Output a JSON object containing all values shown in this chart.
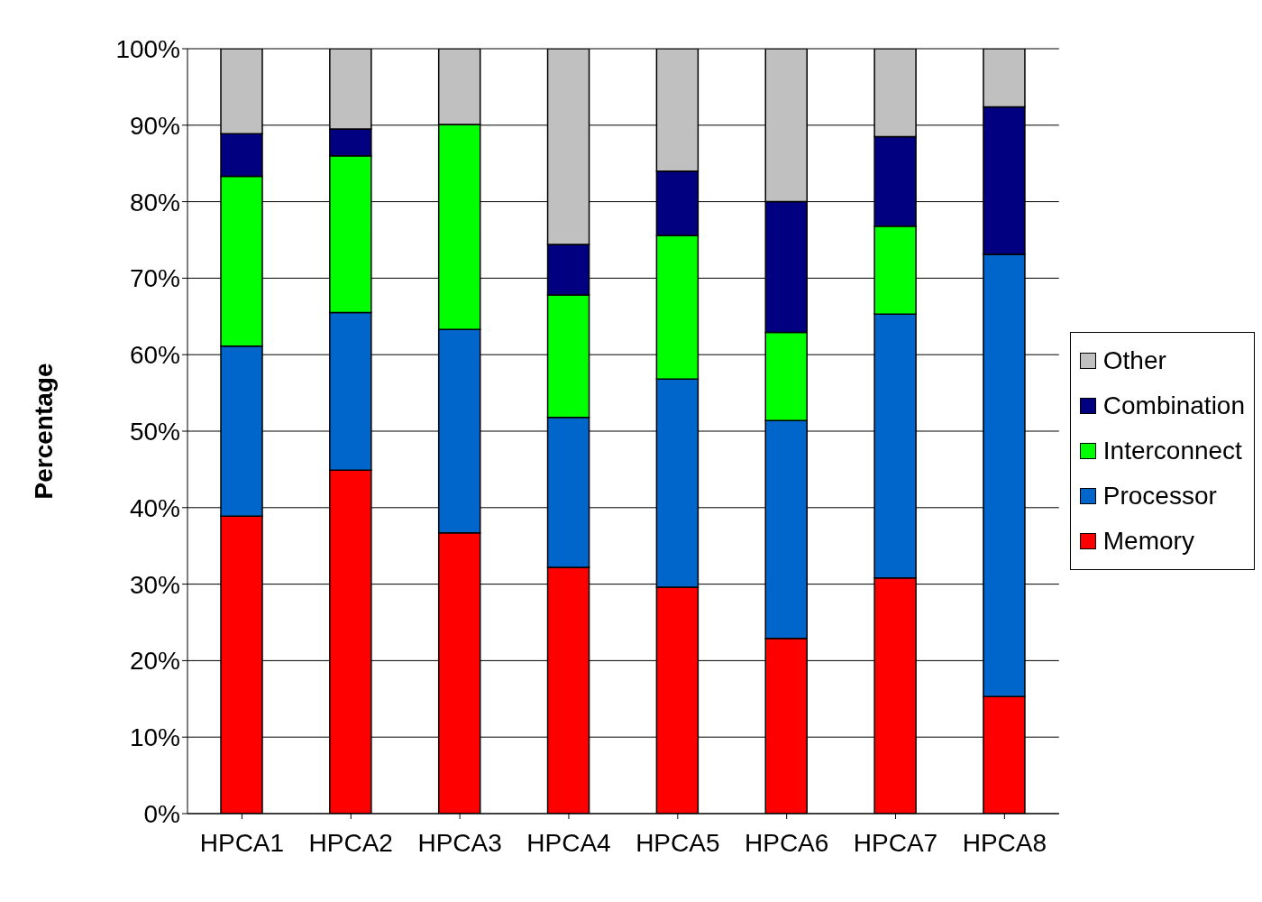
{
  "chart_data": {
    "type": "bar",
    "stacked": true,
    "ylabel": "Percentage",
    "categories": [
      "HPCA1",
      "HPCA2",
      "HPCA3",
      "HPCA4",
      "HPCA5",
      "HPCA6",
      "HPCA7",
      "HPCA8"
    ],
    "series": [
      {
        "name": "Memory",
        "color": "#ff0000",
        "values": [
          38.9,
          44.9,
          36.7,
          32.2,
          29.6,
          22.9,
          30.8,
          15.3
        ]
      },
      {
        "name": "Processor",
        "color": "#0066cc",
        "values": [
          22.2,
          20.6,
          26.6,
          19.6,
          27.2,
          28.5,
          34.5,
          57.8
        ]
      },
      {
        "name": "Interconnect",
        "color": "#00ff00",
        "values": [
          22.2,
          20.5,
          26.8,
          16.0,
          18.8,
          11.5,
          11.5,
          0
        ]
      },
      {
        "name": "Combination",
        "color": "#000080",
        "values": [
          5.6,
          3.5,
          0,
          6.6,
          8.4,
          17.1,
          11.7,
          19.3
        ]
      },
      {
        "name": "Other",
        "color": "#c0c0c0",
        "values": [
          11.1,
          10.5,
          9.9,
          25.6,
          16.0,
          20.0,
          11.5,
          7.6
        ]
      }
    ],
    "ylim": [
      0,
      100
    ],
    "yticks": [
      {
        "value": 0,
        "label": "0%"
      },
      {
        "value": 10,
        "label": "10%"
      },
      {
        "value": 20,
        "label": "20%"
      },
      {
        "value": 30,
        "label": "30%"
      },
      {
        "value": 40,
        "label": "40%"
      },
      {
        "value": 50,
        "label": "50%"
      },
      {
        "value": 60,
        "label": "60%"
      },
      {
        "value": 70,
        "label": "70%"
      },
      {
        "value": 80,
        "label": "80%"
      },
      {
        "value": 90,
        "label": "90%"
      },
      {
        "value": 100,
        "label": "100%"
      }
    ],
    "grid": "y",
    "legend": "right"
  }
}
